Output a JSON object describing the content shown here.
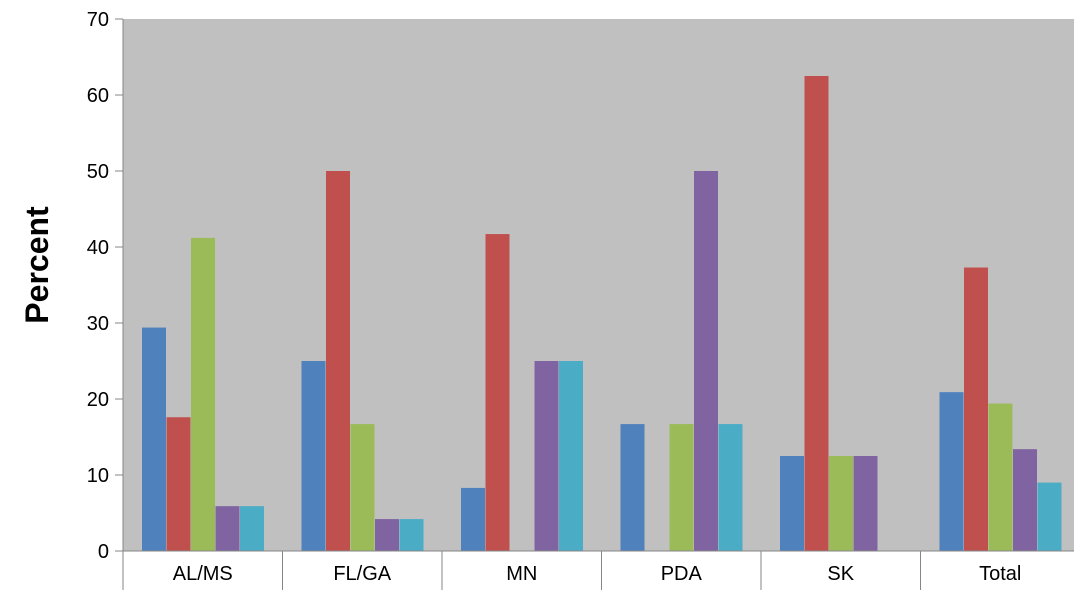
{
  "chart_data": {
    "type": "bar",
    "title": "",
    "xlabel": "",
    "ylabel": "Percent",
    "ylim": [
      0,
      70
    ],
    "yticks": [
      0,
      10,
      20,
      30,
      40,
      50,
      60,
      70
    ],
    "grid": false,
    "legend": "none",
    "plot_background": "#C0C0C0",
    "categories": [
      "AL/MS",
      "FL/GA",
      "MN",
      "PDA",
      "SK",
      "Total"
    ],
    "series": [
      {
        "color": "#4F81BD",
        "values": [
          29.4,
          25.0,
          8.3,
          16.7,
          12.5,
          20.9
        ]
      },
      {
        "color": "#C0504D",
        "values": [
          17.6,
          50.0,
          41.7,
          0,
          62.5,
          37.3
        ]
      },
      {
        "color": "#9BBB59",
        "values": [
          41.2,
          16.7,
          0,
          16.7,
          12.5,
          19.4
        ]
      },
      {
        "color": "#8064A2",
        "values": [
          5.9,
          4.2,
          25.0,
          50.0,
          12.5,
          13.4
        ]
      },
      {
        "color": "#4BACC6",
        "values": [
          5.9,
          4.2,
          25.0,
          16.7,
          0,
          9.0
        ]
      }
    ]
  }
}
